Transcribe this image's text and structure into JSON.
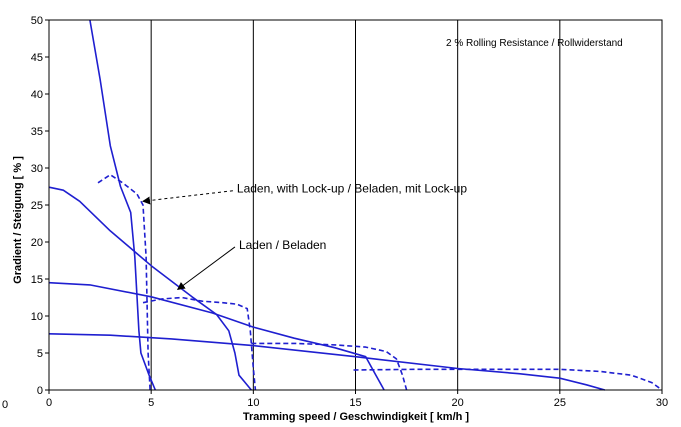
{
  "chart_data": {
    "type": "line",
    "title": "",
    "xlabel": "Tramming speed / Geschwindigkeit   [ km/h ]",
    "ylabel": "Gradient / Steigung   [ % ]",
    "xlim": [
      0,
      30
    ],
    "ylim": [
      0,
      50
    ],
    "x_ticks": [
      "0",
      "5",
      "10",
      "15",
      "20",
      "25",
      "30"
    ],
    "y_ticks": [
      "0",
      "5",
      "10",
      "15",
      "20",
      "25",
      "30",
      "35",
      "40",
      "45",
      "50"
    ],
    "corner_label": "0",
    "note": "2 % Rolling Resistance / Rollwiderstand",
    "grid": "vertical",
    "color": "#1f1fd0",
    "annotations": [
      {
        "text": "Laden, with Lock-up / Beladen, mit Lock-up",
        "arrow_to": [
          4.6,
          25.5
        ],
        "text_at": [
          9.0,
          27.2
        ],
        "dashed": true
      },
      {
        "text": "Laden / Beladen",
        "arrow_to": [
          6.3,
          13.6
        ],
        "text_at": [
          9.1,
          19.6
        ],
        "dashed": false
      }
    ],
    "series": [
      {
        "style": "solid",
        "points": [
          [
            2.0,
            50.0
          ],
          [
            2.5,
            42.0
          ],
          [
            3.0,
            33.0
          ],
          [
            3.5,
            27.5
          ],
          [
            4.0,
            24.0
          ],
          [
            4.2,
            18.0
          ],
          [
            4.4,
            8.0
          ],
          [
            4.5,
            5.0
          ],
          [
            4.9,
            2.0
          ],
          [
            5.2,
            0.0
          ]
        ]
      },
      {
        "style": "solid",
        "points": [
          [
            0.0,
            27.4
          ],
          [
            0.7,
            27.0
          ],
          [
            1.5,
            25.5
          ],
          [
            3.0,
            21.5
          ],
          [
            5.0,
            16.8
          ],
          [
            7.0,
            12.6
          ],
          [
            8.2,
            10.2
          ],
          [
            8.8,
            8.0
          ],
          [
            9.1,
            5.0
          ],
          [
            9.3,
            2.0
          ],
          [
            9.6,
            1.0
          ],
          [
            9.9,
            0.0
          ]
        ]
      },
      {
        "style": "solid",
        "points": [
          [
            0.0,
            14.5
          ],
          [
            2.0,
            14.2
          ],
          [
            5.0,
            12.6
          ],
          [
            8.0,
            10.4
          ],
          [
            10.0,
            8.5
          ],
          [
            12.0,
            7.0
          ],
          [
            14.0,
            5.7
          ],
          [
            15.5,
            4.5
          ],
          [
            16.0,
            2.0
          ],
          [
            16.4,
            0.0
          ]
        ]
      },
      {
        "style": "solid",
        "points": [
          [
            0.0,
            7.6
          ],
          [
            3.0,
            7.4
          ],
          [
            6.0,
            6.9
          ],
          [
            10.0,
            6.0
          ],
          [
            15.0,
            4.5
          ],
          [
            20.0,
            2.9
          ],
          [
            23.0,
            2.2
          ],
          [
            25.0,
            1.6
          ],
          [
            26.3,
            0.7
          ],
          [
            27.2,
            0.0
          ]
        ]
      },
      {
        "style": "dashed",
        "points": [
          [
            2.4,
            28.0
          ],
          [
            3.0,
            29.1
          ],
          [
            3.6,
            28.0
          ],
          [
            4.3,
            26.5
          ],
          [
            4.6,
            25.0
          ],
          [
            4.75,
            18.0
          ],
          [
            4.85,
            5.0
          ],
          [
            4.95,
            0.0
          ]
        ]
      },
      {
        "style": "dashed",
        "points": [
          [
            4.6,
            11.8
          ],
          [
            5.5,
            12.3
          ],
          [
            6.5,
            12.5
          ],
          [
            7.5,
            12.0
          ],
          [
            8.5,
            11.8
          ],
          [
            9.2,
            11.6
          ],
          [
            9.7,
            11.0
          ],
          [
            9.85,
            8.0
          ],
          [
            10.0,
            3.0
          ],
          [
            10.1,
            0.0
          ]
        ]
      },
      {
        "style": "dashed",
        "points": [
          [
            9.9,
            6.3
          ],
          [
            12.0,
            6.3
          ],
          [
            14.0,
            6.1
          ],
          [
            15.5,
            5.8
          ],
          [
            16.5,
            5.2
          ],
          [
            17.0,
            4.2
          ],
          [
            17.3,
            2.0
          ],
          [
            17.5,
            0.0
          ]
        ]
      },
      {
        "style": "dashed",
        "points": [
          [
            14.9,
            2.7
          ],
          [
            18.0,
            2.8
          ],
          [
            20.0,
            2.8
          ],
          [
            23.0,
            2.8
          ],
          [
            25.0,
            2.8
          ],
          [
            27.0,
            2.5
          ],
          [
            28.5,
            2.0
          ],
          [
            29.5,
            1.0
          ],
          [
            30.0,
            0.0
          ]
        ]
      }
    ]
  }
}
